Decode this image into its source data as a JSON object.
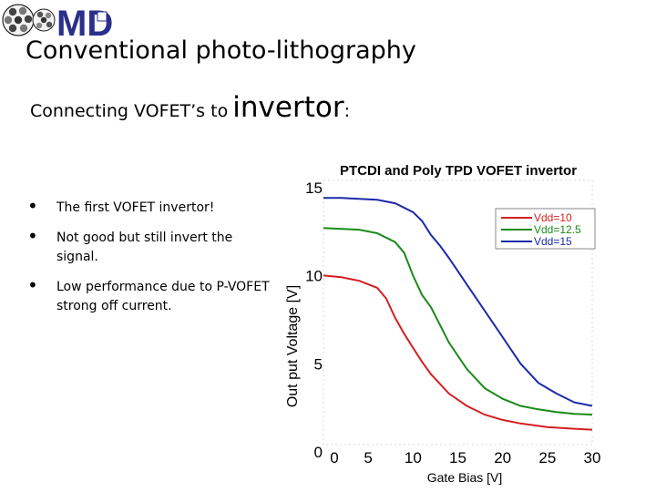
{
  "slide": {
    "title": "Conventional photo-lithography",
    "subtitle_small": "Connecting VOFET’s to",
    "subtitle_big": "invertor",
    "subtitle_end": ":",
    "bullets": [
      "The first VOFET invertor!",
      "Not good but still invert the signal.",
      "Low performance due to P-VOFET strong off current."
    ],
    "logo": {
      "letters": "MD",
      "icon": "buckyball-logo-icon"
    }
  },
  "chart_data": {
    "type": "line",
    "title": "PTCDI and Poly TPD VOFET invertor",
    "xlabel": "Gate Bias [V]",
    "ylabel": "Out put Voltage [V]",
    "xlim": [
      0,
      30
    ],
    "ylim": [
      0,
      15
    ],
    "xticks": [
      0,
      5,
      10,
      15,
      20,
      25,
      30
    ],
    "yticks": [
      0,
      5,
      10,
      15
    ],
    "grid": false,
    "legend_position": "top-right",
    "series": [
      {
        "name": "Vdd=10",
        "color": "#d42020",
        "x": [
          0,
          2,
          4,
          6,
          7,
          8,
          9,
          10,
          11,
          12,
          14,
          16,
          18,
          20,
          22,
          25,
          28,
          30
        ],
        "y": [
          9.6,
          9.5,
          9.3,
          8.9,
          8.3,
          7.2,
          6.3,
          5.5,
          4.7,
          4.0,
          2.9,
          2.2,
          1.7,
          1.4,
          1.2,
          1.0,
          0.9,
          0.85
        ]
      },
      {
        "name": "Vdd=12.5",
        "color": "#1a8a1a",
        "x": [
          0,
          2,
          4,
          6,
          8,
          9,
          10,
          11,
          12,
          14,
          16,
          18,
          20,
          22,
          24,
          26,
          28,
          30
        ],
        "y": [
          12.3,
          12.25,
          12.2,
          12.0,
          11.5,
          10.9,
          9.6,
          8.5,
          7.8,
          5.8,
          4.3,
          3.2,
          2.6,
          2.2,
          2.0,
          1.85,
          1.75,
          1.7
        ]
      },
      {
        "name": "Vdd=15",
        "color": "#1c2aa8",
        "x": [
          0,
          2,
          4,
          6,
          8,
          10,
          11,
          12,
          13,
          14,
          16,
          18,
          20,
          22,
          24,
          26,
          28,
          30
        ],
        "y": [
          14.0,
          14.0,
          13.95,
          13.9,
          13.7,
          13.2,
          12.7,
          11.9,
          11.3,
          10.6,
          9.1,
          7.6,
          6.1,
          4.6,
          3.5,
          2.9,
          2.4,
          2.2
        ]
      }
    ]
  }
}
